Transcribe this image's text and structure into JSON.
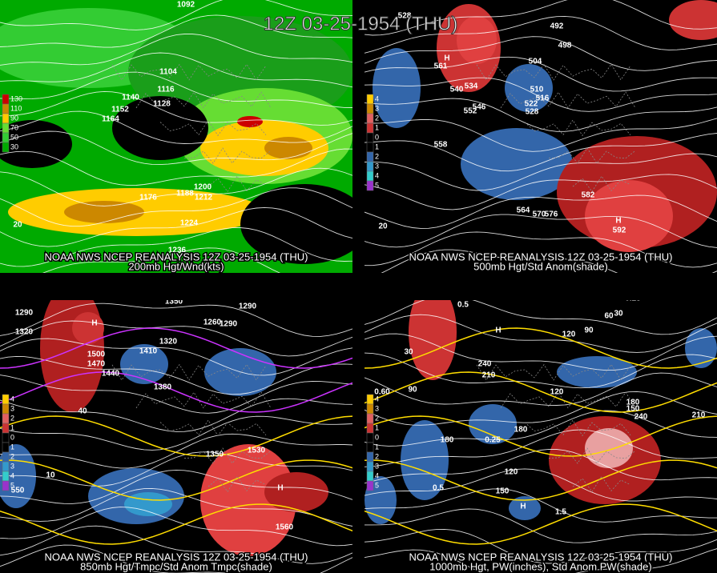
{
  "title": "12Z 03-25-1954 (THU)",
  "panels": [
    {
      "source": "NOAA NWS NCEP REANALYSIS 12Z 03-25-1954 (THU)",
      "caption": "200mb Hgt/Wnd(kts)",
      "legend": [
        "130",
        "110",
        "90",
        "70",
        "50",
        "30"
      ],
      "labels": [
        "1092",
        "1104",
        "1116",
        "1140",
        "1128",
        "1152",
        "1164",
        "1176",
        "1188",
        "1200",
        "1212",
        "1224",
        "1236",
        "20"
      ]
    },
    {
      "source": "NOAA NWS NCEP REANALYSIS 12Z 03-25-1954 (THU)",
      "caption": "500mb Hgt/Std Anom(shade)",
      "legend": [
        "4",
        "3",
        "2",
        "1",
        "0",
        "1",
        "2",
        "3",
        "4",
        "5"
      ],
      "labels": [
        "528",
        "492",
        "498",
        "504",
        "540",
        "534",
        "510",
        "516",
        "546",
        "522",
        "552",
        "528",
        "558",
        "582",
        "564",
        "570",
        "576",
        "20",
        "H",
        "561",
        "H",
        "592"
      ]
    },
    {
      "source": "NOAA NWS NCEP REANALYSIS 12Z 03-25-1954 (THU)",
      "caption": "850mb Hgt/Tmpc/Std Anom Tmpc(shade)",
      "legend": [
        "4",
        "3",
        "2",
        "1",
        "0",
        "1",
        "2",
        "3",
        "4",
        "5"
      ],
      "labels": [
        "1290",
        "1350",
        "1320",
        "1290",
        "1500",
        "1470",
        "1440",
        "1410",
        "1380",
        "1260",
        "1320",
        "1290",
        "1530",
        "1350",
        "1560",
        "40",
        "10",
        "550",
        "H",
        "H"
      ]
    },
    {
      "source": "NOAA NWS NCEP REANALYSIS 12Z 03-25-1954 (THU)",
      "caption": "1000mb Hgt, PW(inches), Std Anom PW(shade)",
      "legend": [
        "4",
        "3",
        "2",
        "1",
        "0",
        "1",
        "2",
        "3",
        "4",
        "5"
      ],
      "labels": [
        "0.5",
        "0.25",
        "60",
        "30",
        "120",
        "90",
        "30",
        "240",
        "210",
        "90",
        "120",
        "180",
        "150",
        "240",
        "210",
        "0.60",
        "180",
        "0.25",
        "180",
        "120",
        "150",
        "0.5",
        "1.5",
        "H",
        "H"
      ]
    }
  ]
}
